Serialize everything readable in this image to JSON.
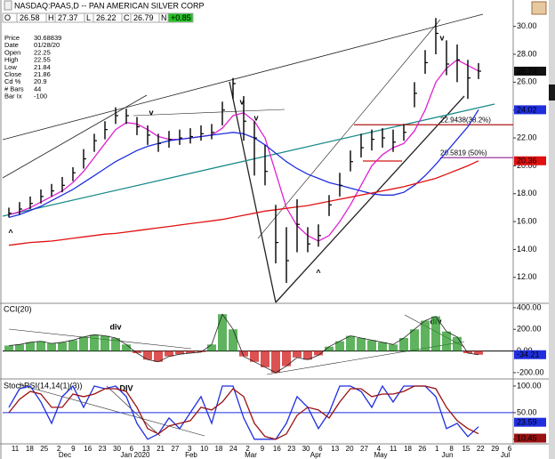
{
  "header": {
    "title": "NASDAQ:PAAS,D -- PAN AMERICAN SILVER CORP",
    "open_label": "O",
    "open": "26.58",
    "high_label": "H",
    "low_label": "L",
    "close_label": "C",
    "change_label": "N",
    "change": "+0.85"
  },
  "info": [
    [
      "Price",
      "30.68839"
    ],
    [
      "Date",
      "01/28/20"
    ],
    [
      "Open",
      "22.25"
    ],
    [
      "High",
      "22.55"
    ],
    [
      "Low",
      "21.84"
    ],
    [
      "Close",
      "21.86"
    ],
    [
      "Cd %",
      "20.9"
    ],
    [
      "# Bars",
      "44"
    ],
    [
      "Bar Ix",
      "-100"
    ]
  ],
  "chart_data": [
    {
      "type": "ohlc",
      "color": "#000000",
      "high": [
        17.0,
        17.4,
        17.8,
        18.3,
        18.7,
        19.2,
        19.9,
        21.2,
        22.3,
        23.2,
        24.2,
        24.1,
        23.5,
        22.9,
        22.3,
        22.5,
        22.6,
        22.7,
        22.9,
        23.0,
        24.6,
        26.3,
        25.0,
        23.2,
        21.5,
        17.2,
        15.6,
        17.6,
        15.6,
        15.8,
        17.9,
        19.5,
        21.1,
        22.3,
        22.6,
        22.7,
        22.6,
        23.0,
        26.0,
        28.3,
        30.6,
        29.0,
        28.7,
        27.6,
        27.37
      ],
      "low": [
        16.3,
        16.5,
        16.9,
        17.3,
        17.8,
        18.1,
        18.9,
        19.8,
        21.0,
        21.9,
        23.0,
        23.0,
        22.2,
        21.5,
        21.0,
        21.3,
        21.5,
        21.6,
        21.8,
        21.9,
        22.9,
        24.8,
        21.8,
        19.3,
        18.6,
        13.0,
        11.6,
        13.8,
        13.8,
        14.2,
        16.4,
        17.8,
        19.6,
        20.6,
        21.1,
        21.3,
        21.0,
        21.8,
        24.2,
        26.6,
        28.0,
        26.5,
        26.0,
        24.8,
        26.22
      ],
      "close": [
        16.6,
        16.9,
        17.3,
        17.8,
        18.2,
        18.6,
        19.5,
        20.5,
        21.8,
        22.6,
        23.6,
        23.6,
        22.8,
        22.2,
        21.6,
        21.9,
        22.0,
        22.1,
        22.3,
        22.4,
        24.0,
        25.9,
        23.2,
        22.0,
        19.6,
        14.5,
        13.2,
        15.8,
        14.4,
        15.0,
        17.2,
        18.6,
        20.3,
        21.3,
        21.9,
        22.0,
        21.7,
        22.4,
        25.2,
        27.4,
        29.5,
        27.3,
        27.6,
        26.3,
        26.79
      ],
      "close_box_color": "#111111",
      "series": [
        {
          "color": "#e020d0",
          "values": [
            16.5,
            16.7,
            17.0,
            17.4,
            17.8,
            18.2,
            18.8,
            19.6,
            20.6,
            21.6,
            22.6,
            23.1,
            23.0,
            22.6,
            22.1,
            21.9,
            21.9,
            22.0,
            22.1,
            22.2,
            22.7,
            23.6,
            23.8,
            23.2,
            22.0,
            19.5,
            17.0,
            15.7,
            15.0,
            14.6,
            15.0,
            16.0,
            17.2,
            18.6,
            20.0,
            20.8,
            21.3,
            21.6,
            22.5,
            24.0,
            26.0,
            27.0,
            27.6,
            27.2,
            26.8
          ]
        },
        {
          "color": "#1f2fe0",
          "box": true,
          "values": [
            16.3,
            16.5,
            16.8,
            17.1,
            17.5,
            17.9,
            18.3,
            18.8,
            19.3,
            19.8,
            20.3,
            20.7,
            21.1,
            21.4,
            21.6,
            21.8,
            21.9,
            22.0,
            22.1,
            22.2,
            22.3,
            22.4,
            22.3,
            22.0,
            21.5,
            20.9,
            20.3,
            19.8,
            19.4,
            19.1,
            18.8,
            18.6,
            18.4,
            18.2,
            18.0,
            17.9,
            17.9,
            18.1,
            18.6,
            19.3,
            20.1,
            21.0,
            21.9,
            22.8,
            24.02
          ]
        },
        {
          "color": "#e01010",
          "box": true,
          "values": [
            14.3,
            14.4,
            14.5,
            14.55,
            14.6,
            14.7,
            14.8,
            14.9,
            15.0,
            15.1,
            15.15,
            15.25,
            15.35,
            15.45,
            15.55,
            15.65,
            15.75,
            15.85,
            15.95,
            16.05,
            16.15,
            16.3,
            16.45,
            16.6,
            16.75,
            16.85,
            16.95,
            17.05,
            17.15,
            17.3,
            17.45,
            17.6,
            17.75,
            17.9,
            18.05,
            18.2,
            18.35,
            18.5,
            18.7,
            18.9,
            19.1,
            19.4,
            19.7,
            20.0,
            20.36
          ]
        }
      ],
      "levels": [
        {
          "value": 22.9438,
          "label": "22.9438(38.2%)",
          "color": "#b01818",
          "label_color": "#2a8a2a"
        },
        {
          "value": 20.5819,
          "label": "20.5819 (50%)",
          "color": "#9a3aa0",
          "label_color": "#7a2a9a"
        }
      ],
      "annotations": [
        {
          "text": "v",
          "color": "#e020d0"
        },
        {
          "text": "v",
          "color": "#e020d0"
        },
        {
          "text": "v",
          "color": "#1f2fe0"
        },
        {
          "text": "v",
          "color": "#e020d0"
        },
        {
          "text": "^",
          "color": "#1f2fe0"
        },
        {
          "text": "^",
          "color": "#e020d0"
        }
      ],
      "ylim": [
        10.2,
        31.0
      ],
      "yticks": [
        {
          "value": 12,
          "label": "12.00"
        },
        {
          "value": 14,
          "label": "14.00"
        },
        {
          "value": 16,
          "label": "16.00"
        },
        {
          "value": 18,
          "label": "18.00"
        },
        {
          "value": 20,
          "label": "20.00"
        },
        {
          "value": 22,
          "label": "22.00"
        },
        {
          "value": 24,
          "label": "24.00"
        },
        {
          "value": 26,
          "label": "26.00"
        },
        {
          "value": 28,
          "label": "28.00"
        },
        {
          "value": 30,
          "label": "30.00"
        }
      ]
    },
    {
      "type": "cci",
      "title": "CCI(20)",
      "pos_color": "#2a9a2a",
      "neg_color": "#d01818",
      "box_color": "#1f2fe0",
      "values": [
        50,
        60,
        80,
        90,
        70,
        80,
        100,
        130,
        150,
        140,
        120,
        60,
        -20,
        -80,
        -100,
        -50,
        -30,
        -20,
        -10,
        60,
        340,
        200,
        -50,
        -100,
        -150,
        -200,
        -140,
        -60,
        -80,
        -40,
        40,
        90,
        140,
        120,
        100,
        80,
        60,
        120,
        200,
        280,
        320,
        180,
        130,
        -20,
        -34.21
      ],
      "ref_line": 0,
      "annotations": [
        {
          "text": "div",
          "color": "#d01818"
        },
        {
          "text": "div",
          "color": "#d01818"
        }
      ],
      "ylim": [
        -250,
        432
      ],
      "yticks": [
        {
          "value": -200,
          "label": "-200.00"
        },
        {
          "value": 0,
          "label": "0.00"
        },
        {
          "value": 200,
          "label": "200.00"
        },
        {
          "value": 400,
          "label": "400.00"
        }
      ]
    },
    {
      "type": "line",
      "title": "StochRSI(14,14(1)(3))",
      "series": [
        {
          "color": "#1f2fe0",
          "values": [
            60,
            95,
            100,
            70,
            30,
            80,
            100,
            60,
            100,
            95,
            100,
            80,
            30,
            0,
            10,
            40,
            20,
            50,
            80,
            30,
            100,
            100,
            40,
            0,
            0,
            0,
            30,
            80,
            60,
            20,
            50,
            100,
            100,
            90,
            60,
            100,
            70,
            100,
            100,
            100,
            80,
            20,
            30,
            5,
            23.59
          ]
        },
        {
          "color": "#9a1010",
          "values": [
            50,
            75,
            90,
            85,
            60,
            60,
            85,
            80,
            85,
            95,
            95,
            90,
            60,
            20,
            10,
            25,
            30,
            35,
            60,
            55,
            70,
            95,
            80,
            30,
            5,
            0,
            10,
            45,
            60,
            55,
            40,
            70,
            95,
            95,
            80,
            85,
            85,
            90,
            100,
            100,
            95,
            60,
            35,
            20,
            10.45
          ]
        }
      ],
      "ref_line": 50,
      "ref_color": "#1f2fe0",
      "annotations": [
        {
          "text": "DIV",
          "color": "#d01818"
        }
      ],
      "ylim": [
        -7,
        110
      ],
      "yticks": [
        {
          "value": 0,
          "label": "0.00"
        },
        {
          "value": 50,
          "label": "50.00"
        },
        {
          "value": 100,
          "label": "100.00"
        }
      ],
      "x_labels": [
        "11",
        "18",
        "25",
        "2",
        "9",
        "16",
        "23",
        "30",
        "6",
        "13",
        "21",
        "27",
        "3",
        "10",
        "18",
        "24",
        "2",
        "9",
        "16",
        "23",
        "30",
        "6",
        "13",
        "20",
        "27",
        "4",
        "11",
        "18",
        "26",
        "1",
        "8",
        "15",
        "22",
        "29",
        "6"
      ],
      "months": [
        "Dec",
        "Jan 2020",
        "Feb",
        "Mar",
        "Apr",
        "May",
        "Jun",
        "Jul"
      ]
    }
  ]
}
